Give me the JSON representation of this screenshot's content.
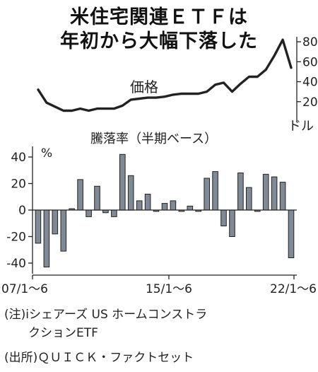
{
  "title_lines": [
    "米住宅関連ＥＴＦは",
    "年初から大幅下落した"
  ],
  "chart_data": [
    {
      "type": "line",
      "series": [
        {
          "name": "価格",
          "x": [
            "2007H1",
            "2007H2",
            "2008H1",
            "2008H2",
            "2009H1",
            "2009H2",
            "2010H1",
            "2010H2",
            "2011H1",
            "2011H2",
            "2012H1",
            "2012H2",
            "2013H1",
            "2013H2",
            "2014H1",
            "2014H2",
            "2015H1",
            "2015H2",
            "2016H1",
            "2016H2",
            "2017H1",
            "2017H2",
            "2018H1",
            "2018H2",
            "2019H1",
            "2019H2",
            "2020H1",
            "2020H2",
            "2021H1",
            "2021H2",
            "2022H1"
          ],
          "values": [
            32,
            19,
            15,
            11,
            11,
            13,
            11,
            13,
            13,
            13,
            16,
            22,
            23,
            24,
            24,
            25,
            27,
            28,
            28,
            28,
            30,
            37,
            39,
            30,
            38,
            45,
            45,
            52,
            66,
            82,
            54
          ]
        }
      ],
      "ylim": [
        0,
        85
      ],
      "yticks": [
        "80",
        "60",
        "40",
        "20"
      ],
      "yunit": "ドル",
      "axis_side": "right",
      "grid": false
    },
    {
      "type": "bar",
      "title": "騰落率（半期ベース）",
      "categories": [
        "2007H1",
        "2007H2",
        "2008H1",
        "2008H2",
        "2009H1",
        "2009H2",
        "2010H1",
        "2010H2",
        "2011H1",
        "2011H2",
        "2012H1",
        "2012H2",
        "2013H1",
        "2013H2",
        "2014H1",
        "2014H2",
        "2015H1",
        "2015H2",
        "2016H1",
        "2016H2",
        "2017H1",
        "2017H2",
        "2018H1",
        "2018H2",
        "2019H1",
        "2019H2",
        "2020H1",
        "2020H2",
        "2021H1",
        "2021H2",
        "2022H1"
      ],
      "values": [
        -25,
        -43,
        -18,
        -31,
        1,
        23,
        -5,
        18,
        -2,
        -5,
        42,
        26,
        7,
        12,
        -1,
        5,
        7,
        -1,
        3,
        -1,
        24,
        29,
        -12,
        -20,
        28,
        17,
        -1,
        27,
        25,
        21,
        -36
      ],
      "ylim": [
        -48,
        48
      ],
      "yticks": [
        "40",
        "20",
        "0",
        "-20",
        "-40"
      ],
      "yunit": "%",
      "xticks": [
        "07/1〜6",
        "15/1〜6",
        "22/1〜6"
      ],
      "grid": false,
      "bar_color": "#7f8a96"
    }
  ],
  "notes": [
    "(注)iシェアーズ US ホームコンストラ",
    "　　クションETF",
    "(出所)ＱＵＩＣＫ・ファクトセット"
  ]
}
